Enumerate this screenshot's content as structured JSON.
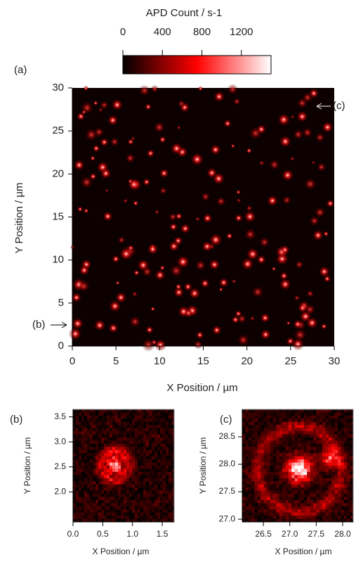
{
  "chart_data": [
    {
      "type": "heatmap",
      "panel_label": "(a)",
      "xlabel": "X Position / µm",
      "ylabel": "Y Position / µm",
      "xlim": [
        0,
        30
      ],
      "ylim": [
        0,
        30
      ],
      "xticks": [
        0,
        5,
        10,
        15,
        20,
        25,
        30
      ],
      "yticks": [
        0,
        5,
        10,
        15,
        20,
        25,
        30
      ],
      "colormap": [
        "#000000",
        "#ff0000",
        "#ffffff"
      ],
      "colorbar": {
        "title": "APD Count / s-1",
        "lim": [
          0,
          1500
        ],
        "ticks": [
          0,
          400,
          800,
          1200
        ]
      },
      "annotations": [
        "(b)",
        "(c)"
      ]
    },
    {
      "type": "heatmap",
      "panel_label": "(b)",
      "xlabel": "X Position / µm",
      "ylabel": "Y Position / µm",
      "xlim": [
        0,
        1.7
      ],
      "ylim": [
        1.4,
        3.65
      ],
      "xticks": [
        {
          "value": 0,
          "label": "0.0"
        },
        0.5,
        {
          "value": 1,
          "label": "1.0"
        },
        1.5
      ],
      "yticks": [
        {
          "value": 2,
          "label": "2.0"
        },
        2.5,
        {
          "value": 3,
          "label": "3.0"
        },
        3.5
      ]
    },
    {
      "type": "heatmap",
      "panel_label": "(c)",
      "xlabel": "X Position / µm",
      "ylabel": "Y Position / µm",
      "xlim": [
        26.1,
        28.2
      ],
      "ylim": [
        26.95,
        29.0
      ],
      "xticks": [
        26.5,
        {
          "value": 27,
          "label": "27.0"
        },
        27.5,
        {
          "value": 28,
          "label": "28.0"
        }
      ],
      "yticks": [
        {
          "value": 27,
          "label": "27.0"
        },
        27.5,
        {
          "value": 28,
          "label": "28.0"
        },
        28.5
      ]
    }
  ]
}
